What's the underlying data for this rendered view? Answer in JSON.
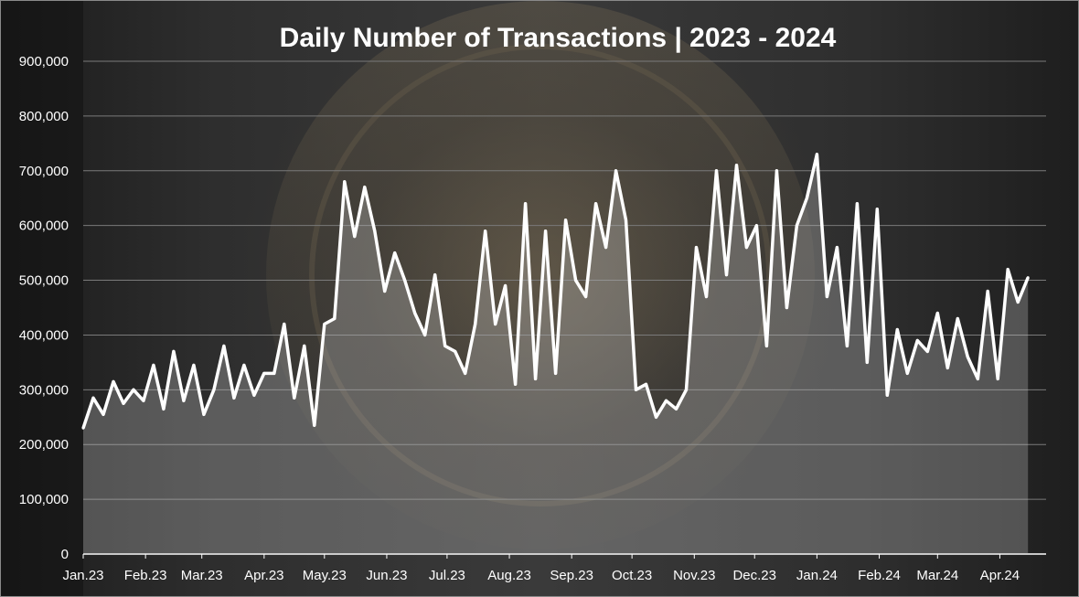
{
  "colors": {
    "line": "#ffffff",
    "area": "rgba(200,200,200,0.30)",
    "grid": "#7a7a7a",
    "text": "#ffffff"
  },
  "chart_data": {
    "type": "line",
    "title": "Daily Number of Transactions | 2023 - 2024",
    "xlabel": "",
    "ylabel": "",
    "ylim": [
      0,
      900000
    ],
    "grid": true,
    "area_fill": true,
    "y_ticks": [
      "0",
      "100,000",
      "200,000",
      "300,000",
      "400,000",
      "500,000",
      "600,000",
      "700,000",
      "800,000",
      "900,000"
    ],
    "x_ticks": [
      "Jan.23",
      "Feb.23",
      "Mar.23",
      "Apr.23",
      "May.23",
      "Jun.23",
      "Jul.23",
      "Aug.23",
      "Sep.23",
      "Oct.23",
      "Nov.23",
      "Dec.23",
      "Jan.24",
      "Feb.24",
      "Mar.24",
      "Apr.24"
    ],
    "series": [
      {
        "x": [
          "2023-01-01",
          "2023-01-06",
          "2023-01-11",
          "2023-01-16",
          "2023-01-21",
          "2023-01-26",
          "2023-01-31",
          "2023-02-05",
          "2023-02-10",
          "2023-02-15",
          "2023-02-20",
          "2023-02-25",
          "2023-03-02",
          "2023-03-07",
          "2023-03-12",
          "2023-03-17",
          "2023-03-22",
          "2023-03-27",
          "2023-04-01",
          "2023-04-06",
          "2023-04-11",
          "2023-04-16",
          "2023-04-21",
          "2023-04-26",
          "2023-05-01",
          "2023-05-06",
          "2023-05-11",
          "2023-05-16",
          "2023-05-21",
          "2023-05-26",
          "2023-05-31",
          "2023-06-05",
          "2023-06-10",
          "2023-06-15",
          "2023-06-20",
          "2023-06-25",
          "2023-06-30",
          "2023-07-05",
          "2023-07-10",
          "2023-07-15",
          "2023-07-20",
          "2023-07-25",
          "2023-07-30",
          "2023-08-04",
          "2023-08-09",
          "2023-08-14",
          "2023-08-19",
          "2023-08-24",
          "2023-08-29",
          "2023-09-03",
          "2023-09-08",
          "2023-09-13",
          "2023-09-18",
          "2023-09-23",
          "2023-09-28",
          "2023-10-03",
          "2023-10-08",
          "2023-10-13",
          "2023-10-18",
          "2023-10-23",
          "2023-10-28",
          "2023-11-02",
          "2023-11-07",
          "2023-11-12",
          "2023-11-17",
          "2023-11-22",
          "2023-11-27",
          "2023-12-02",
          "2023-12-07",
          "2023-12-12",
          "2023-12-17",
          "2023-12-22",
          "2023-12-27",
          "2024-01-01",
          "2024-01-06",
          "2024-01-11",
          "2024-01-16",
          "2024-01-21",
          "2024-01-26",
          "2024-01-31",
          "2024-02-05",
          "2024-02-10",
          "2024-02-15",
          "2024-02-20",
          "2024-02-25",
          "2024-03-01",
          "2024-03-06",
          "2024-03-11",
          "2024-03-16",
          "2024-03-21",
          "2024-03-26",
          "2024-03-31",
          "2024-04-05",
          "2024-04-10",
          "2024-04-15"
        ],
        "values": [
          230000,
          285000,
          255000,
          315000,
          275000,
          300000,
          280000,
          345000,
          265000,
          370000,
          280000,
          345000,
          255000,
          300000,
          380000,
          285000,
          345000,
          290000,
          330000,
          330000,
          420000,
          285000,
          380000,
          235000,
          420000,
          430000,
          680000,
          580000,
          670000,
          590000,
          480000,
          550000,
          500000,
          440000,
          400000,
          510000,
          380000,
          370000,
          330000,
          420000,
          590000,
          420000,
          490000,
          310000,
          640000,
          320000,
          590000,
          330000,
          610000,
          500000,
          470000,
          640000,
          560000,
          700000,
          610000,
          300000,
          310000,
          250000,
          280000,
          265000,
          300000,
          560000,
          470000,
          700000,
          510000,
          710000,
          560000,
          600000,
          380000,
          700000,
          450000,
          600000,
          650000,
          730000,
          470000,
          560000,
          380000,
          640000,
          350000,
          630000,
          290000,
          410000,
          330000,
          390000,
          370000,
          440000,
          340000,
          430000,
          360000,
          320000,
          480000,
          320000,
          520000,
          460000,
          505000
        ]
      }
    ]
  }
}
